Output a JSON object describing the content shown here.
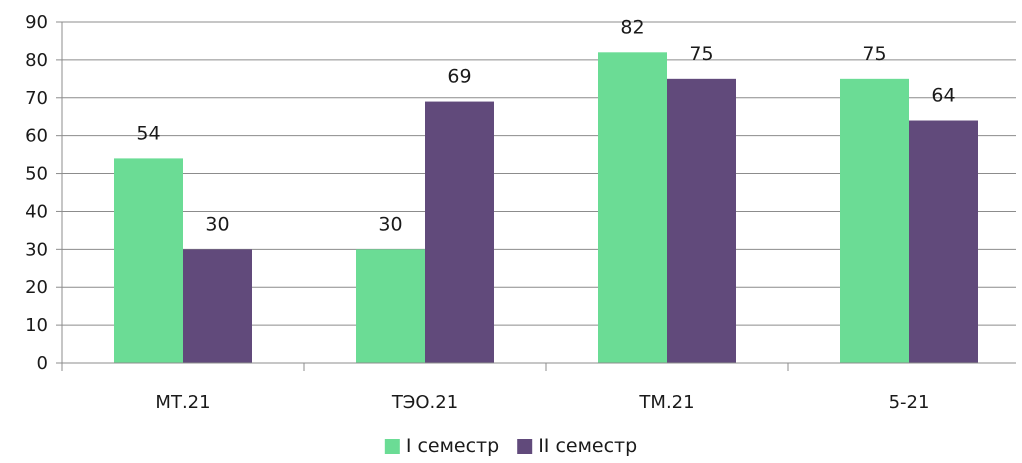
{
  "chart_data": {
    "type": "bar",
    "title": "",
    "xlabel": "",
    "ylabel": "",
    "categories": [
      "МТ.21",
      "ТЭО.21",
      "ТМ.21",
      "5-21"
    ],
    "series": [
      {
        "name": "I семестр",
        "values": [
          54,
          30,
          82,
          75
        ],
        "color": "#6bdc95"
      },
      {
        "name": "II семестр",
        "values": [
          30,
          69,
          75,
          64
        ],
        "color": "#614a7b"
      }
    ],
    "ylim": [
      0,
      90
    ],
    "yticks": [
      0,
      10,
      20,
      30,
      40,
      50,
      60,
      70,
      80,
      90
    ],
    "grid": true,
    "legend_position": "bottom",
    "data_labels": true
  },
  "colors": {
    "gridline": "#8c8c8c",
    "axis": "#8c8c8c"
  }
}
